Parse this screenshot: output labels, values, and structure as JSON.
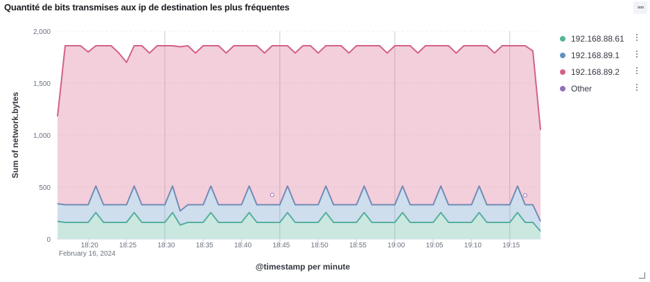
{
  "panel": {
    "title": "Quantité de bits transmises aux ip de destination les plus fréquentes",
    "options_icon": "ellipsis-icon"
  },
  "colors": {
    "series": [
      "#54b399",
      "#6092c0",
      "#d36086",
      "#9170b8"
    ],
    "grid": "#e7e9ee",
    "axis_text": "#69707d"
  },
  "chart_data": {
    "type": "area",
    "stacked": true,
    "ylabel": "Sum of network.bytes",
    "xlabel": "@timestamp per minute",
    "ylim": [
      0,
      2000
    ],
    "yticks": [
      "0",
      "500",
      "1,000",
      "1,500",
      "2,000"
    ],
    "xticks": [
      "18:20",
      "18:25",
      "18:30",
      "18:35",
      "18:40",
      "18:45",
      "18:50",
      "18:55",
      "19:00",
      "19:05",
      "19:10",
      "19:15"
    ],
    "xtick_minutes": [
      20,
      25,
      30,
      35,
      40,
      45,
      50,
      55,
      60,
      65,
      70,
      75
    ],
    "date_label": "February 16, 2024",
    "x_minutes_start": 16,
    "x_minutes": [
      16,
      17,
      18,
      19,
      20,
      21,
      22,
      23,
      24,
      25,
      26,
      27,
      28,
      29,
      30,
      31,
      32,
      33,
      34,
      35,
      36,
      37,
      38,
      39,
      40,
      41,
      42,
      43,
      44,
      45,
      46,
      47,
      48,
      49,
      50,
      51,
      52,
      53,
      54,
      55,
      56,
      57,
      58,
      59,
      60,
      61,
      62,
      63,
      64,
      65,
      66,
      67,
      68,
      69,
      70,
      71,
      72,
      73,
      74,
      75,
      76,
      77,
      78,
      79
    ],
    "series": [
      {
        "name": "192.168.89.2",
        "values": [
          170,
          160,
          160,
          160,
          160,
          255,
          160,
          160,
          160,
          160,
          255,
          160,
          160,
          160,
          160,
          255,
          135,
          160,
          160,
          160,
          255,
          160,
          160,
          160,
          160,
          255,
          160,
          160,
          160,
          160,
          255,
          160,
          160,
          160,
          160,
          255,
          160,
          160,
          160,
          160,
          255,
          160,
          160,
          160,
          160,
          255,
          160,
          160,
          160,
          160,
          255,
          160,
          160,
          160,
          160,
          255,
          160,
          160,
          160,
          160,
          255,
          160,
          160,
          75
        ]
      },
      {
        "name": "192.168.89.1",
        "values": [
          170,
          170,
          170,
          170,
          170,
          255,
          170,
          170,
          170,
          170,
          255,
          170,
          170,
          170,
          170,
          255,
          135,
          170,
          170,
          170,
          255,
          170,
          170,
          170,
          170,
          255,
          170,
          170,
          170,
          170,
          255,
          170,
          170,
          170,
          170,
          255,
          170,
          170,
          170,
          170,
          255,
          170,
          170,
          170,
          170,
          255,
          170,
          170,
          170,
          170,
          255,
          170,
          170,
          170,
          170,
          255,
          170,
          170,
          170,
          170,
          255,
          170,
          170,
          95
        ]
      },
      {
        "name": "192.168.88.61",
        "values": [
          840,
          1530,
          1530,
          1530,
          1470,
          1350,
          1530,
          1530,
          1460,
          1370,
          1350,
          1530,
          1460,
          1530,
          1530,
          1350,
          1580,
          1530,
          1460,
          1530,
          1350,
          1530,
          1460,
          1530,
          1530,
          1350,
          1530,
          1460,
          1530,
          1530,
          1350,
          1460,
          1530,
          1530,
          1460,
          1350,
          1530,
          1530,
          1460,
          1530,
          1350,
          1530,
          1530,
          1460,
          1530,
          1350,
          1530,
          1460,
          1530,
          1530,
          1350,
          1530,
          1460,
          1530,
          1530,
          1350,
          1530,
          1460,
          1530,
          1530,
          1350,
          1530,
          1480,
          880
        ]
      },
      {
        "name": "Other",
        "values": [
          0,
          0,
          0,
          0,
          0,
          0,
          0,
          0,
          0,
          0,
          0,
          0,
          0,
          0,
          0,
          0,
          0,
          0,
          0,
          0,
          0,
          0,
          0,
          0,
          0,
          0,
          0,
          0,
          0,
          0,
          0,
          0,
          0,
          0,
          0,
          0,
          0,
          0,
          0,
          0,
          0,
          0,
          0,
          0,
          0,
          0,
          0,
          0,
          0,
          0,
          0,
          0,
          0,
          0,
          0,
          0,
          0,
          0,
          0,
          0,
          0,
          0,
          0,
          0
        ]
      }
    ],
    "legend_position": "right",
    "grid": true
  },
  "legend": {
    "items": [
      {
        "label": "192.168.88.61",
        "color": "#54b399"
      },
      {
        "label": "192.168.89.1",
        "color": "#6092c0"
      },
      {
        "label": "192.168.89.2",
        "color": "#d36086"
      },
      {
        "label": "Other",
        "color": "#9170b8"
      }
    ]
  }
}
